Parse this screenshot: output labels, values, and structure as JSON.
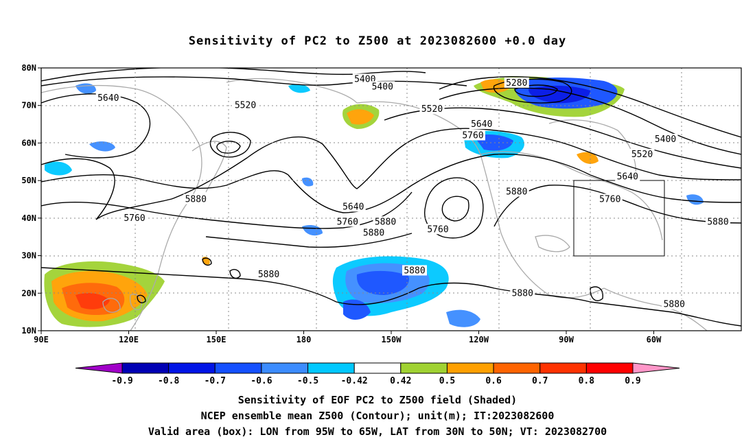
{
  "title": "Sensitivity of PC2 to Z500 at 2023082600 +0.0 day",
  "captions": [
    "Sensitivity of EOF PC2 to Z500 field (Shaded)",
    "NCEP ensemble mean Z500 (Contour); unit(m); IT:2023082600",
    "Valid area (box): LON from 95W to 65W, LAT from 30N to 50N; VT: 2023082700"
  ],
  "map": {
    "lon_range": [
      90,
      330
    ],
    "lat_range": [
      10,
      80
    ],
    "lat_ticks": [
      "80N",
      "70N",
      "60N",
      "50N",
      "40N",
      "30N",
      "20N",
      "10N"
    ],
    "lon_ticks": [
      "90E",
      "120E",
      "150E",
      "180",
      "150W",
      "120W",
      "90W",
      "60W"
    ],
    "valid_box": {
      "lon": [
        265,
        295
      ],
      "lat": [
        30,
        50
      ]
    },
    "colors": {
      "contour": "#000000",
      "coast": "#aaaaaa",
      "grid": "#888888",
      "box": "#000000"
    }
  },
  "contour_labels": [
    {
      "text": "5400",
      "lon": 201,
      "lat": 77
    },
    {
      "text": "5400",
      "lon": 207,
      "lat": 75
    },
    {
      "text": "5280",
      "lon": 253,
      "lat": 76
    },
    {
      "text": "5640",
      "lon": 113,
      "lat": 72
    },
    {
      "text": "5520",
      "lon": 160,
      "lat": 70
    },
    {
      "text": "5520",
      "lon": 224,
      "lat": 69
    },
    {
      "text": "5640",
      "lon": 241,
      "lat": 65
    },
    {
      "text": "5760",
      "lon": 238,
      "lat": 62
    },
    {
      "text": "5400",
      "lon": 304,
      "lat": 61
    },
    {
      "text": "5520",
      "lon": 296,
      "lat": 57
    },
    {
      "text": "5640",
      "lon": 291,
      "lat": 51
    },
    {
      "text": "5880",
      "lon": 143,
      "lat": 45
    },
    {
      "text": "5880",
      "lon": 253,
      "lat": 47
    },
    {
      "text": "5640",
      "lon": 197,
      "lat": 43
    },
    {
      "text": "5760",
      "lon": 285,
      "lat": 45
    },
    {
      "text": "5760",
      "lon": 122,
      "lat": 40
    },
    {
      "text": "5760",
      "lon": 195,
      "lat": 39
    },
    {
      "text": "5880",
      "lon": 208,
      "lat": 39
    },
    {
      "text": "5880",
      "lon": 322,
      "lat": 39
    },
    {
      "text": "5760",
      "lon": 226,
      "lat": 37
    },
    {
      "text": "5880",
      "lon": 204,
      "lat": 36
    },
    {
      "text": "5880",
      "lon": 168,
      "lat": 25
    },
    {
      "text": "5880",
      "lon": 218,
      "lat": 26
    },
    {
      "text": "5880",
      "lon": 255,
      "lat": 20
    },
    {
      "text": "5880",
      "lon": 307,
      "lat": 17
    }
  ],
  "colorbar": {
    "labels": [
      "-0.9",
      "-0.8",
      "-0.7",
      "-0.6",
      "-0.5",
      "-0.42",
      "0.42",
      "0.5",
      "0.6",
      "0.7",
      "0.8",
      "0.9"
    ],
    "colors": [
      "#a000c8",
      "#0000b4",
      "#0014e6",
      "#1450ff",
      "#3c8cff",
      "#00c8ff",
      "#ffffff",
      "#a0d232",
      "#ffa000",
      "#ff6400",
      "#ff3200",
      "#ff0000",
      "#ff96c8"
    ]
  }
}
